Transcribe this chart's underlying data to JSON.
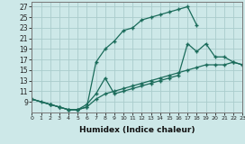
{
  "xlabel": "Humidex (Indice chaleur)",
  "xlim": [
    0,
    23
  ],
  "ylim": [
    7,
    28
  ],
  "xticks": [
    0,
    1,
    2,
    3,
    4,
    5,
    6,
    7,
    8,
    9,
    10,
    11,
    12,
    13,
    14,
    15,
    16,
    17,
    18,
    19,
    20,
    21,
    22,
    23
  ],
  "yticks": [
    9,
    11,
    13,
    15,
    17,
    19,
    21,
    23,
    25,
    27
  ],
  "ytick_labels": [
    "9",
    "11",
    "13",
    "15",
    "17",
    "19",
    "21",
    "23",
    "25",
    "27"
  ],
  "bg_color": "#cde8e8",
  "line_color": "#1a6b5a",
  "grid_color": "#aacccc",
  "curve1_x": [
    0,
    1,
    2,
    3,
    4,
    5,
    6,
    7,
    8,
    9,
    10,
    11,
    12,
    13,
    14,
    15,
    16,
    17,
    18
  ],
  "curve1_y": [
    9.5,
    9.0,
    8.5,
    8.0,
    7.5,
    7.5,
    8.0,
    16.5,
    19.0,
    20.5,
    22.5,
    23.0,
    24.5,
    25.0,
    25.5,
    26.0,
    26.5,
    27.0,
    23.5
  ],
  "curve2_x": [
    0,
    2,
    3,
    4,
    5,
    6,
    7,
    8,
    9,
    10,
    11,
    12,
    13,
    14,
    15,
    16,
    17,
    18,
    19,
    20,
    21,
    22,
    23
  ],
  "curve2_y": [
    9.5,
    8.5,
    8.0,
    7.5,
    7.5,
    8.5,
    10.5,
    13.5,
    10.5,
    11.0,
    11.5,
    12.0,
    12.5,
    13.0,
    13.5,
    14.0,
    20.0,
    18.5,
    20.0,
    17.5,
    17.5,
    16.5,
    16.0
  ],
  "curve3_x": [
    0,
    2,
    3,
    4,
    5,
    6,
    7,
    8,
    9,
    10,
    11,
    12,
    13,
    14,
    15,
    16,
    17,
    18,
    19,
    20,
    21,
    22,
    23
  ],
  "curve3_y": [
    9.5,
    8.5,
    8.0,
    7.5,
    7.5,
    8.0,
    9.5,
    10.5,
    11.0,
    11.5,
    12.0,
    12.5,
    13.0,
    13.5,
    14.0,
    14.5,
    15.0,
    15.5,
    16.0,
    16.0,
    16.0,
    16.5,
    16.0
  ]
}
